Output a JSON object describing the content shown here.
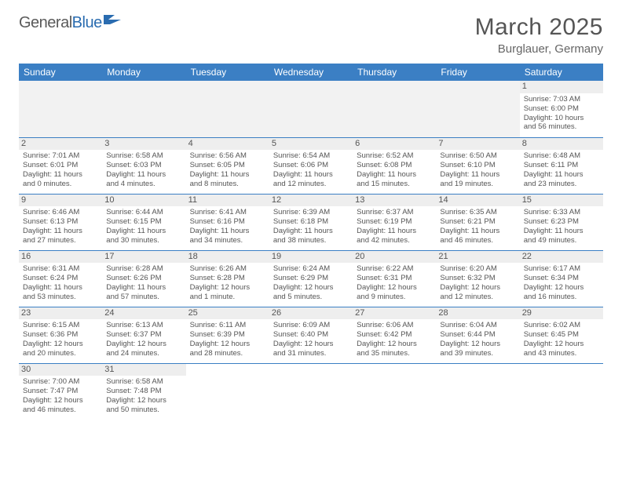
{
  "logo": {
    "part1": "General",
    "part2": "Blue"
  },
  "title": {
    "month": "March 2025",
    "location": "Burglauer, Germany"
  },
  "colors": {
    "header_bg": "#3b7fc4",
    "header_text": "#ffffff",
    "daynum_bg": "#eeeeee",
    "border": "#3b7fc4",
    "text": "#555555",
    "logo_accent": "#2a6cb0"
  },
  "weekdays": [
    "Sunday",
    "Monday",
    "Tuesday",
    "Wednesday",
    "Thursday",
    "Friday",
    "Saturday"
  ],
  "weeks": [
    [
      null,
      null,
      null,
      null,
      null,
      null,
      {
        "n": "1",
        "sr": "Sunrise: 7:03 AM",
        "ss": "Sunset: 6:00 PM",
        "d1": "Daylight: 10 hours",
        "d2": "and 56 minutes."
      }
    ],
    [
      {
        "n": "2",
        "sr": "Sunrise: 7:01 AM",
        "ss": "Sunset: 6:01 PM",
        "d1": "Daylight: 11 hours",
        "d2": "and 0 minutes."
      },
      {
        "n": "3",
        "sr": "Sunrise: 6:58 AM",
        "ss": "Sunset: 6:03 PM",
        "d1": "Daylight: 11 hours",
        "d2": "and 4 minutes."
      },
      {
        "n": "4",
        "sr": "Sunrise: 6:56 AM",
        "ss": "Sunset: 6:05 PM",
        "d1": "Daylight: 11 hours",
        "d2": "and 8 minutes."
      },
      {
        "n": "5",
        "sr": "Sunrise: 6:54 AM",
        "ss": "Sunset: 6:06 PM",
        "d1": "Daylight: 11 hours",
        "d2": "and 12 minutes."
      },
      {
        "n": "6",
        "sr": "Sunrise: 6:52 AM",
        "ss": "Sunset: 6:08 PM",
        "d1": "Daylight: 11 hours",
        "d2": "and 15 minutes."
      },
      {
        "n": "7",
        "sr": "Sunrise: 6:50 AM",
        "ss": "Sunset: 6:10 PM",
        "d1": "Daylight: 11 hours",
        "d2": "and 19 minutes."
      },
      {
        "n": "8",
        "sr": "Sunrise: 6:48 AM",
        "ss": "Sunset: 6:11 PM",
        "d1": "Daylight: 11 hours",
        "d2": "and 23 minutes."
      }
    ],
    [
      {
        "n": "9",
        "sr": "Sunrise: 6:46 AM",
        "ss": "Sunset: 6:13 PM",
        "d1": "Daylight: 11 hours",
        "d2": "and 27 minutes."
      },
      {
        "n": "10",
        "sr": "Sunrise: 6:44 AM",
        "ss": "Sunset: 6:15 PM",
        "d1": "Daylight: 11 hours",
        "d2": "and 30 minutes."
      },
      {
        "n": "11",
        "sr": "Sunrise: 6:41 AM",
        "ss": "Sunset: 6:16 PM",
        "d1": "Daylight: 11 hours",
        "d2": "and 34 minutes."
      },
      {
        "n": "12",
        "sr": "Sunrise: 6:39 AM",
        "ss": "Sunset: 6:18 PM",
        "d1": "Daylight: 11 hours",
        "d2": "and 38 minutes."
      },
      {
        "n": "13",
        "sr": "Sunrise: 6:37 AM",
        "ss": "Sunset: 6:19 PM",
        "d1": "Daylight: 11 hours",
        "d2": "and 42 minutes."
      },
      {
        "n": "14",
        "sr": "Sunrise: 6:35 AM",
        "ss": "Sunset: 6:21 PM",
        "d1": "Daylight: 11 hours",
        "d2": "and 46 minutes."
      },
      {
        "n": "15",
        "sr": "Sunrise: 6:33 AM",
        "ss": "Sunset: 6:23 PM",
        "d1": "Daylight: 11 hours",
        "d2": "and 49 minutes."
      }
    ],
    [
      {
        "n": "16",
        "sr": "Sunrise: 6:31 AM",
        "ss": "Sunset: 6:24 PM",
        "d1": "Daylight: 11 hours",
        "d2": "and 53 minutes."
      },
      {
        "n": "17",
        "sr": "Sunrise: 6:28 AM",
        "ss": "Sunset: 6:26 PM",
        "d1": "Daylight: 11 hours",
        "d2": "and 57 minutes."
      },
      {
        "n": "18",
        "sr": "Sunrise: 6:26 AM",
        "ss": "Sunset: 6:28 PM",
        "d1": "Daylight: 12 hours",
        "d2": "and 1 minute."
      },
      {
        "n": "19",
        "sr": "Sunrise: 6:24 AM",
        "ss": "Sunset: 6:29 PM",
        "d1": "Daylight: 12 hours",
        "d2": "and 5 minutes."
      },
      {
        "n": "20",
        "sr": "Sunrise: 6:22 AM",
        "ss": "Sunset: 6:31 PM",
        "d1": "Daylight: 12 hours",
        "d2": "and 9 minutes."
      },
      {
        "n": "21",
        "sr": "Sunrise: 6:20 AM",
        "ss": "Sunset: 6:32 PM",
        "d1": "Daylight: 12 hours",
        "d2": "and 12 minutes."
      },
      {
        "n": "22",
        "sr": "Sunrise: 6:17 AM",
        "ss": "Sunset: 6:34 PM",
        "d1": "Daylight: 12 hours",
        "d2": "and 16 minutes."
      }
    ],
    [
      {
        "n": "23",
        "sr": "Sunrise: 6:15 AM",
        "ss": "Sunset: 6:36 PM",
        "d1": "Daylight: 12 hours",
        "d2": "and 20 minutes."
      },
      {
        "n": "24",
        "sr": "Sunrise: 6:13 AM",
        "ss": "Sunset: 6:37 PM",
        "d1": "Daylight: 12 hours",
        "d2": "and 24 minutes."
      },
      {
        "n": "25",
        "sr": "Sunrise: 6:11 AM",
        "ss": "Sunset: 6:39 PM",
        "d1": "Daylight: 12 hours",
        "d2": "and 28 minutes."
      },
      {
        "n": "26",
        "sr": "Sunrise: 6:09 AM",
        "ss": "Sunset: 6:40 PM",
        "d1": "Daylight: 12 hours",
        "d2": "and 31 minutes."
      },
      {
        "n": "27",
        "sr": "Sunrise: 6:06 AM",
        "ss": "Sunset: 6:42 PM",
        "d1": "Daylight: 12 hours",
        "d2": "and 35 minutes."
      },
      {
        "n": "28",
        "sr": "Sunrise: 6:04 AM",
        "ss": "Sunset: 6:44 PM",
        "d1": "Daylight: 12 hours",
        "d2": "and 39 minutes."
      },
      {
        "n": "29",
        "sr": "Sunrise: 6:02 AM",
        "ss": "Sunset: 6:45 PM",
        "d1": "Daylight: 12 hours",
        "d2": "and 43 minutes."
      }
    ],
    [
      {
        "n": "30",
        "sr": "Sunrise: 7:00 AM",
        "ss": "Sunset: 7:47 PM",
        "d1": "Daylight: 12 hours",
        "d2": "and 46 minutes."
      },
      {
        "n": "31",
        "sr": "Sunrise: 6:58 AM",
        "ss": "Sunset: 7:48 PM",
        "d1": "Daylight: 12 hours",
        "d2": "and 50 minutes."
      },
      null,
      null,
      null,
      null,
      null
    ]
  ]
}
